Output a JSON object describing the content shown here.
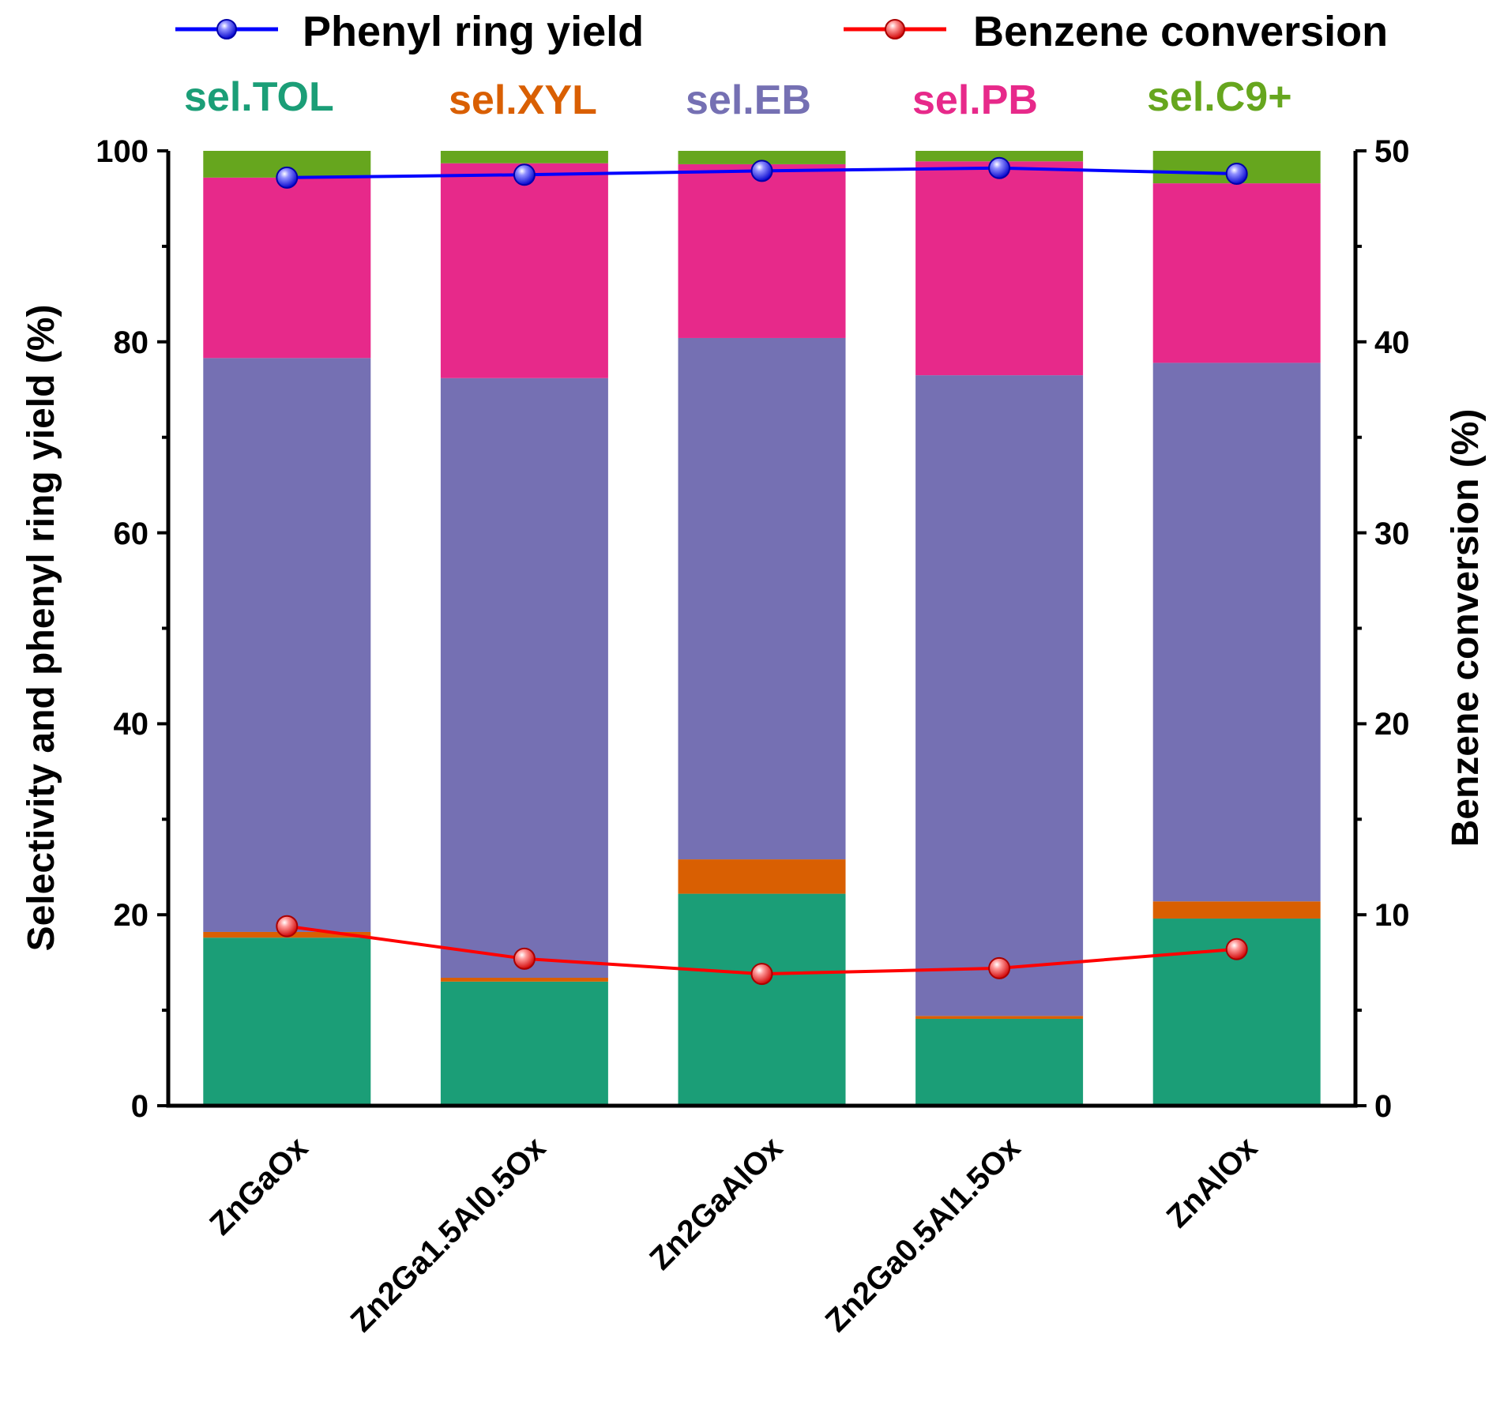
{
  "chart_data": {
    "type": "bar",
    "stacked": true,
    "categories": [
      "ZnGaOx",
      "Zn2Ga1.5Al0.5Ox",
      "Zn2GaAlOx",
      "Zn2Ga0.5Al1.5Ox",
      "ZnAlOx"
    ],
    "series": [
      {
        "name": "sel.TOL",
        "color": "#1b9e77",
        "values": [
          17.6,
          13.0,
          22.2,
          9.1,
          19.6
        ]
      },
      {
        "name": "sel.XYL",
        "color": "#d95f02",
        "values": [
          0.6,
          0.4,
          3.6,
          0.3,
          1.8
        ]
      },
      {
        "name": "sel.EB",
        "color": "#7570b3",
        "values": [
          60.1,
          62.8,
          54.6,
          67.1,
          56.4
        ]
      },
      {
        "name": "sel.PB",
        "color": "#e7298a",
        "values": [
          18.9,
          22.5,
          18.2,
          22.4,
          18.8
        ]
      },
      {
        "name": "sel.C9+",
        "color": "#66a61e",
        "values": [
          2.8,
          1.3,
          1.4,
          1.1,
          3.4
        ]
      }
    ],
    "lines": [
      {
        "name": "Phenyl ring yield",
        "axis": "left",
        "color": "#0000ff",
        "values": [
          97.2,
          97.5,
          97.9,
          98.2,
          97.6
        ]
      },
      {
        "name": "Benzene conversion",
        "axis": "right",
        "color": "#ff0000",
        "values": [
          9.4,
          7.7,
          6.9,
          7.2,
          8.2
        ]
      }
    ],
    "ylabel": "Selectivity and phenyl ring yield (%)",
    "y2label": "Benzene conversion  (%)",
    "ylim": [
      0,
      100
    ],
    "y2lim": [
      0,
      50
    ],
    "yticks": [
      "0",
      "20",
      "40",
      "60",
      "80",
      "100"
    ],
    "y2ticks": [
      "0",
      "10",
      "20",
      "30",
      "40",
      "50"
    ],
    "legend_position": "top"
  }
}
